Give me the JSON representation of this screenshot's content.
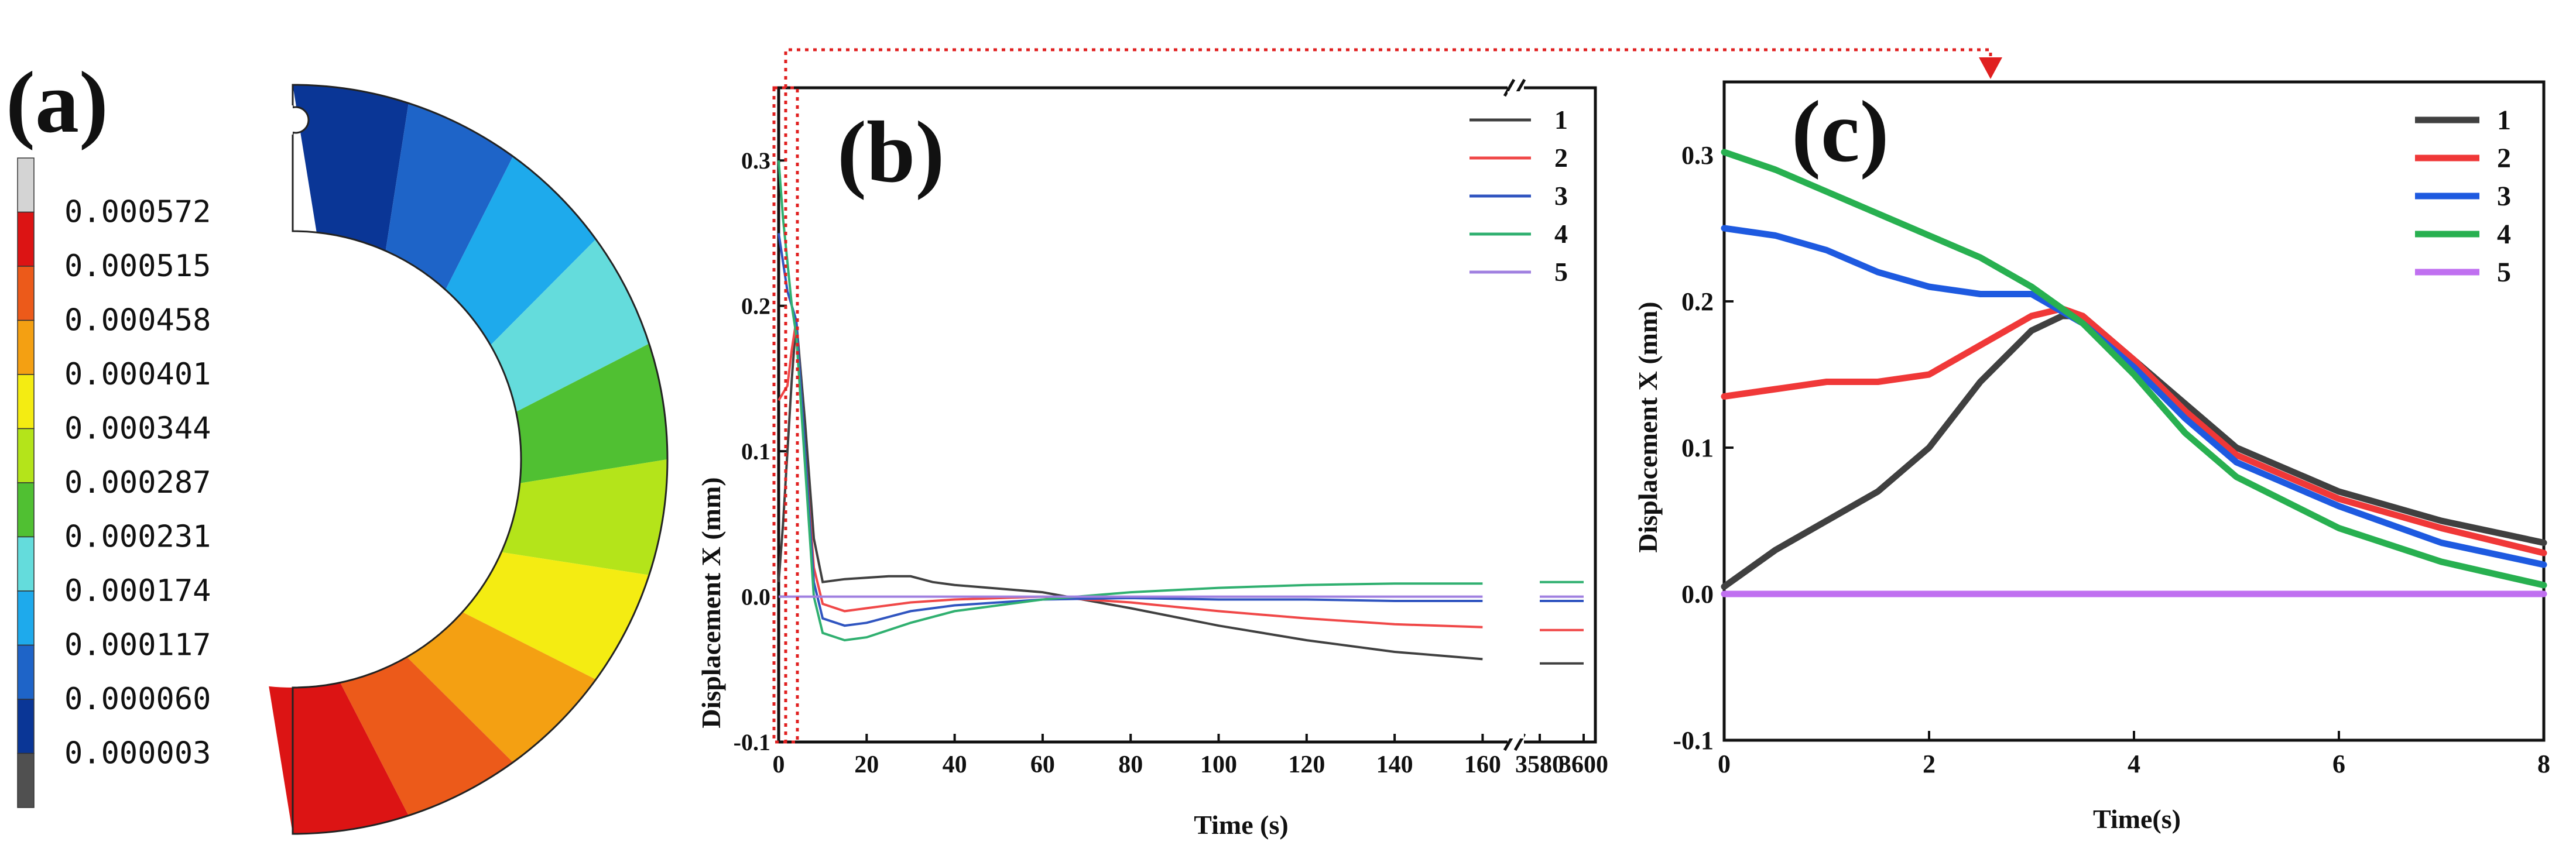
{
  "panel_a": {
    "label": "(a)",
    "legend_values": [
      "0.000572",
      "0.000515",
      "0.000458",
      "0.000401",
      "0.000344",
      "0.000287",
      "0.000231",
      "0.000174",
      "0.000117",
      "0.000060",
      "0.000003"
    ],
    "legend_colors": [
      "#d4d4d4",
      "#dc1414",
      "#ec5a1a",
      "#f4a012",
      "#f4ec12",
      "#b4e41a",
      "#50c032",
      "#64dcdc",
      "#1eaaec",
      "#1e64c8",
      "#0a3696",
      "#505050"
    ],
    "contour_colors": [
      "#0a3696",
      "#1e64c8",
      "#1eaaec",
      "#64dcdc",
      "#50c032",
      "#b4e41a",
      "#f4ec12",
      "#f4a012",
      "#ec5a1a",
      "#dc1414"
    ]
  },
  "chart_data": [
    {
      "type": "line",
      "label": "(b)",
      "xlabel": "Time (s)",
      "ylabel": "Displacement X (mm)",
      "ylim": [
        -0.1,
        0.35
      ],
      "xlim_part1": [
        0,
        165
      ],
      "xlim_part2": [
        3580,
        3600
      ],
      "x_ticks": [
        "0",
        "20",
        "40",
        "60",
        "80",
        "100",
        "120",
        "140",
        "160",
        "3580",
        "3600"
      ],
      "y_ticks": [
        "-0.1",
        "0.0",
        "0.1",
        "0.2",
        "0.3"
      ],
      "axis_break": "//",
      "legend_labels": [
        "1",
        "2",
        "3",
        "4",
        "5"
      ],
      "series_colors": [
        "#404040",
        "#f04848",
        "#3055c0",
        "#30b070",
        "#a080e0"
      ],
      "series": [
        {
          "name": "1",
          "x": [
            0,
            1,
            2,
            3,
            4,
            6,
            8,
            10,
            15,
            20,
            25,
            30,
            35,
            40,
            60,
            80,
            100,
            120,
            140,
            160,
            3580,
            3600
          ],
          "y": [
            0.01,
            0.05,
            0.1,
            0.15,
            0.19,
            0.12,
            0.04,
            0.01,
            0.012,
            0.013,
            0.014,
            0.014,
            0.01,
            0.008,
            0.003,
            -0.008,
            -0.02,
            -0.03,
            -0.038,
            -0.043,
            -0.046,
            -0.046
          ]
        },
        {
          "name": "2",
          "x": [
            0,
            1,
            2,
            3,
            4,
            6,
            8,
            10,
            15,
            20,
            30,
            40,
            60,
            80,
            100,
            120,
            140,
            160,
            3580,
            3600
          ],
          "y": [
            0.135,
            0.14,
            0.145,
            0.17,
            0.19,
            0.1,
            0.02,
            -0.005,
            -0.01,
            -0.008,
            -0.004,
            -0.002,
            0.0,
            -0.004,
            -0.01,
            -0.015,
            -0.019,
            -0.021,
            -0.023,
            -0.023
          ]
        },
        {
          "name": "3",
          "x": [
            0,
            1,
            2,
            3,
            4,
            6,
            8,
            10,
            15,
            20,
            30,
            40,
            60,
            80,
            100,
            120,
            140,
            160,
            3580,
            3600
          ],
          "y": [
            0.25,
            0.23,
            0.21,
            0.2,
            0.19,
            0.1,
            0.01,
            -0.015,
            -0.02,
            -0.018,
            -0.01,
            -0.006,
            -0.002,
            -0.001,
            -0.002,
            -0.002,
            -0.003,
            -0.003,
            -0.003,
            -0.003
          ]
        },
        {
          "name": "4",
          "x": [
            0,
            1,
            2,
            3,
            4,
            6,
            8,
            10,
            15,
            20,
            30,
            40,
            60,
            80,
            100,
            120,
            140,
            160,
            3580,
            3600
          ],
          "y": [
            0.3,
            0.26,
            0.23,
            0.2,
            0.18,
            0.09,
            0.0,
            -0.025,
            -0.03,
            -0.028,
            -0.018,
            -0.01,
            -0.002,
            0.003,
            0.006,
            0.008,
            0.009,
            0.009,
            0.01,
            0.01
          ]
        },
        {
          "name": "5",
          "x": [
            0,
            160,
            3580,
            3600
          ],
          "y": [
            0.0,
            0.0,
            0.0,
            0.0
          ]
        }
      ]
    },
    {
      "type": "line",
      "label": "(c)",
      "xlabel": "Time(s)",
      "ylabel": "Displacement X (mm)",
      "xlim": [
        0,
        8
      ],
      "ylim": [
        -0.1,
        0.35
      ],
      "x_ticks": [
        "0",
        "2",
        "4",
        "6",
        "8"
      ],
      "y_ticks": [
        "-0.1",
        "0.0",
        "0.1",
        "0.2",
        "0.3"
      ],
      "legend_labels": [
        "1",
        "2",
        "3",
        "4",
        "5"
      ],
      "series_colors": [
        "#404040",
        "#f03838",
        "#1e5ae0",
        "#28b050",
        "#c070f0"
      ],
      "series": [
        {
          "name": "1",
          "x": [
            0,
            0.5,
            1,
            1.5,
            2,
            2.5,
            3,
            3.3,
            3.5,
            4,
            4.5,
            5,
            6,
            7,
            8
          ],
          "y": [
            0.005,
            0.03,
            0.05,
            0.07,
            0.1,
            0.145,
            0.18,
            0.19,
            0.19,
            0.16,
            0.13,
            0.1,
            0.07,
            0.05,
            0.035
          ]
        },
        {
          "name": "2",
          "x": [
            0,
            0.5,
            1,
            1.5,
            2,
            2.5,
            3,
            3.3,
            3.5,
            4,
            4.5,
            5,
            6,
            7,
            8
          ],
          "y": [
            0.135,
            0.14,
            0.145,
            0.145,
            0.15,
            0.17,
            0.19,
            0.195,
            0.19,
            0.16,
            0.125,
            0.095,
            0.065,
            0.045,
            0.028
          ]
        },
        {
          "name": "3",
          "x": [
            0,
            0.5,
            1,
            1.5,
            2,
            2.5,
            3,
            3.5,
            4,
            4.5,
            5,
            6,
            7,
            8
          ],
          "y": [
            0.25,
            0.245,
            0.235,
            0.22,
            0.21,
            0.205,
            0.205,
            0.185,
            0.155,
            0.12,
            0.09,
            0.06,
            0.035,
            0.02
          ]
        },
        {
          "name": "4",
          "x": [
            0,
            0.5,
            1,
            1.5,
            2,
            2.5,
            3,
            3.5,
            4,
            4.5,
            5,
            6,
            7,
            8
          ],
          "y": [
            0.302,
            0.29,
            0.275,
            0.26,
            0.245,
            0.23,
            0.21,
            0.185,
            0.15,
            0.11,
            0.08,
            0.045,
            0.022,
            0.006
          ]
        },
        {
          "name": "5",
          "x": [
            0,
            8
          ],
          "y": [
            0.0,
            0.0
          ]
        }
      ]
    }
  ]
}
